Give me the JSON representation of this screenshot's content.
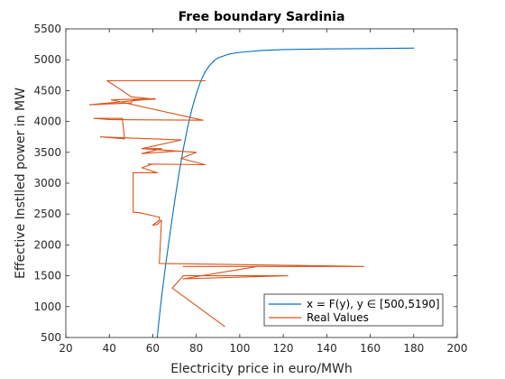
{
  "chart_data": {
    "type": "line",
    "title": "Free boundary Sardinia",
    "xlabel": "Electricity price in euro/MWh",
    "ylabel": "Effective Instlled power in MW",
    "xlim": [
      20,
      200
    ],
    "ylim": [
      500,
      5500
    ],
    "xticks": [
      "20",
      "40",
      "60",
      "80",
      "100",
      "120",
      "140",
      "160",
      "180",
      "200"
    ],
    "yticks": [
      "500",
      "1000",
      "1500",
      "2000",
      "2500",
      "3000",
      "3500",
      "4000",
      "4500",
      "5000",
      "5500"
    ],
    "grid": false,
    "legend_position": "bottom-right",
    "series": [
      {
        "name": "x = F(y),  y ∈ [500,5190]",
        "color": "#0072BD",
        "x": [
          62,
          64,
          66,
          68,
          70,
          72,
          74,
          76,
          78,
          80,
          82,
          84,
          86,
          88,
          90,
          95,
          100,
          110,
          120,
          140,
          160,
          180
        ],
        "y": [
          500,
          1150,
          1700,
          2200,
          2700,
          3150,
          3550,
          3900,
          4200,
          4450,
          4650,
          4800,
          4900,
          4980,
          5030,
          5090,
          5120,
          5150,
          5165,
          5175,
          5182,
          5188
        ]
      },
      {
        "name": "Real Values",
        "color": "#D95319",
        "x": [
          93,
          69,
          74,
          122,
          74,
          108,
          74,
          157,
          63,
          64,
          62,
          60,
          63,
          63,
          54,
          51,
          51,
          62,
          55,
          59,
          58,
          84,
          73,
          80,
          55,
          71,
          55,
          64,
          55,
          73,
          36,
          47,
          46,
          33,
          40,
          83,
          41,
          61,
          40,
          31,
          43,
          50,
          51,
          61,
          50,
          46,
          39,
          84
        ],
        "y": [
          680,
          1300,
          1500,
          1500,
          1450,
          1650,
          1650,
          1650,
          1700,
          2400,
          2330,
          2320,
          2400,
          2450,
          2520,
          2530,
          3170,
          3170,
          3250,
          3300,
          3310,
          3300,
          3400,
          3500,
          3560,
          3520,
          3480,
          3560,
          3560,
          3700,
          3750,
          3720,
          4050,
          4050,
          4030,
          4020,
          4350,
          4370,
          4300,
          4270,
          4290,
          4300,
          4350,
          4360,
          4400,
          4500,
          4660,
          4660
        ]
      }
    ]
  }
}
